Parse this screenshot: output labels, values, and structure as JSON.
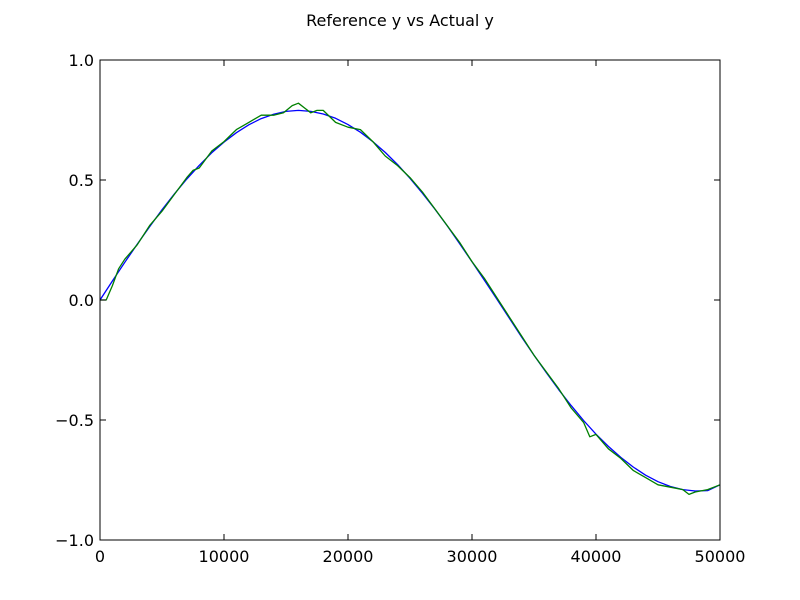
{
  "chart_data": {
    "type": "line",
    "title": "Reference y vs Actual y",
    "xlabel": "",
    "ylabel": "",
    "xlim": [
      0,
      50000
    ],
    "ylim": [
      -1.0,
      1.0
    ],
    "grid": false,
    "legend": "none",
    "x_ticks": [
      0,
      10000,
      20000,
      30000,
      40000,
      50000
    ],
    "x_tick_labels": [
      "0",
      "10000",
      "20000",
      "30000",
      "40000",
      "50000"
    ],
    "y_ticks": [
      1.0,
      0.5,
      0.0,
      -0.5,
      -1.0
    ],
    "y_tick_labels": [
      "1.0",
      "0.5",
      "0.0",
      "−0.5",
      "−1.0"
    ],
    "series": [
      {
        "color": "#0000ff",
        "x": [
          0,
          1000,
          2000,
          3000,
          4000,
          5000,
          6000,
          7000,
          8000,
          9000,
          10000,
          11000,
          12000,
          13000,
          14000,
          15000,
          16000,
          17000,
          18000,
          19000,
          20000,
          21000,
          22000,
          23000,
          24000,
          25000,
          26000,
          27000,
          28000,
          29000,
          30000,
          31000,
          32000,
          33000,
          34000,
          35000,
          36000,
          37000,
          38000,
          39000,
          40000,
          41000,
          42000,
          43000,
          44000,
          45000,
          46000,
          47000,
          48000,
          49000,
          50000
        ],
        "y": [
          0.0,
          0.079,
          0.157,
          0.232,
          0.305,
          0.376,
          0.442,
          0.504,
          0.561,
          0.613,
          0.658,
          0.697,
          0.73,
          0.756,
          0.774,
          0.786,
          0.79,
          0.786,
          0.775,
          0.757,
          0.731,
          0.699,
          0.66,
          0.615,
          0.564,
          0.507,
          0.445,
          0.379,
          0.309,
          0.235,
          0.159,
          0.082,
          0.004,
          -0.075,
          -0.154,
          -0.23,
          -0.303,
          -0.374,
          -0.44,
          -0.502,
          -0.559,
          -0.61,
          -0.656,
          -0.696,
          -0.73,
          -0.757,
          -0.777,
          -0.79,
          -0.796,
          -0.794,
          -0.77
        ]
      },
      {
        "color": "#008000",
        "x": [
          0,
          500,
          1000,
          1500,
          2000,
          3000,
          4000,
          5000,
          6000,
          7000,
          7500,
          8000,
          9000,
          10000,
          11000,
          12000,
          13000,
          14000,
          14800,
          15500,
          16000,
          16500,
          17000,
          17500,
          18000,
          19000,
          20000,
          21000,
          22000,
          23000,
          24000,
          25000,
          26000,
          27000,
          28000,
          29000,
          30000,
          31000,
          32000,
          33000,
          34000,
          35000,
          36000,
          37000,
          38000,
          39000,
          39500,
          40000,
          41000,
          42000,
          43000,
          44000,
          45000,
          46000,
          47000,
          47500,
          48000,
          49000,
          50000
        ],
        "y": [
          0.0,
          0.0,
          0.06,
          0.13,
          0.17,
          0.23,
          0.31,
          0.37,
          0.44,
          0.51,
          0.54,
          0.55,
          0.62,
          0.66,
          0.71,
          0.74,
          0.77,
          0.77,
          0.78,
          0.81,
          0.82,
          0.8,
          0.78,
          0.79,
          0.79,
          0.74,
          0.72,
          0.71,
          0.66,
          0.6,
          0.56,
          0.51,
          0.45,
          0.38,
          0.31,
          0.24,
          0.16,
          0.09,
          0.01,
          -0.07,
          -0.15,
          -0.23,
          -0.3,
          -0.37,
          -0.45,
          -0.51,
          -0.57,
          -0.56,
          -0.62,
          -0.66,
          -0.71,
          -0.74,
          -0.77,
          -0.78,
          -0.79,
          -0.81,
          -0.8,
          -0.79,
          -0.77
        ]
      }
    ]
  }
}
